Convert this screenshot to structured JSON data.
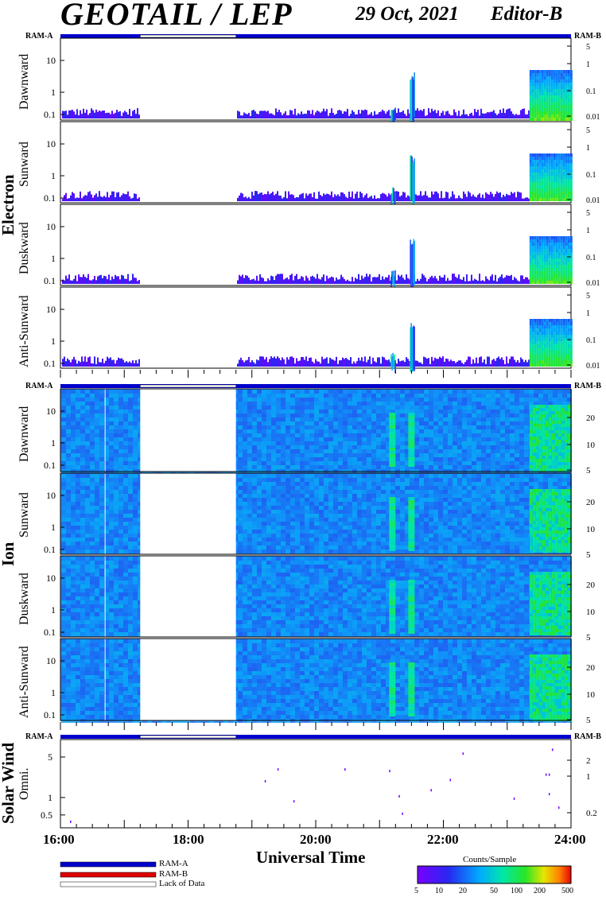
{
  "header": {
    "title": "GEOTAIL / LEP",
    "date": "29 Oct, 2021",
    "editor": "Editor-B"
  },
  "ram_labels": {
    "left": "RAM-A",
    "right": "RAM-B"
  },
  "groups": {
    "electron": "Electron",
    "ion": "Ion",
    "solar_wind": "Solar Wind"
  },
  "panel_labels": {
    "dawnward": "Dawnward",
    "sunward": "Sunward",
    "duskward": "Duskward",
    "anti_sunward": "Anti-Sunward",
    "omni": "Omni."
  },
  "x_axis": {
    "label": "Universal Time",
    "ticks": [
      "16:00",
      "18:00",
      "20:00",
      "22:00",
      "24:00"
    ]
  },
  "legend": {
    "ram_a": "RAM-A",
    "ram_b": "RAM-B",
    "lack": "Lack of Data",
    "colorbar_title": "Counts/Sample",
    "colorbar_ticks": [
      "5",
      "10",
      "20",
      "50",
      "100",
      "200",
      "500"
    ]
  },
  "colors": {
    "ram_a": "#0000cc",
    "ram_b": "#dd0000",
    "lack": "#ffffff",
    "background_ion": "#3a7fe0"
  },
  "chart_data": {
    "type": "heatmap",
    "x_range_hours": [
      16,
      24
    ],
    "data_gap_hours": [
      17.25,
      18.75
    ],
    "electron_panels": {
      "left_ticks": [
        "10",
        "1",
        "0.1"
      ],
      "right_ticks": [
        "5",
        "1",
        "0.1",
        "0.01"
      ],
      "bursts_hours": [
        21.2,
        21.5
      ],
      "high_flux_start_hour": 23.35
    },
    "ion_panels": {
      "left_ticks": [
        "10",
        "1",
        "0.1"
      ],
      "right_ticks": [
        "20",
        "10",
        "5"
      ],
      "bursts_hours": [
        21.2,
        21.5
      ],
      "high_flux_start_hour": 23.35
    },
    "solar_wind": {
      "left_ticks": [
        "5",
        "1",
        "0.5"
      ],
      "right_ticks": [
        "2",
        "1",
        "0.2"
      ],
      "points": [
        {
          "x": 16.15,
          "y": 0.4
        },
        {
          "x": 19.2,
          "y": 2.0
        },
        {
          "x": 19.4,
          "y": 3.2
        },
        {
          "x": 19.65,
          "y": 0.9
        },
        {
          "x": 20.45,
          "y": 3.2
        },
        {
          "x": 21.15,
          "y": 3.0
        },
        {
          "x": 21.3,
          "y": 1.1
        },
        {
          "x": 21.35,
          "y": 0.55
        },
        {
          "x": 21.8,
          "y": 1.4
        },
        {
          "x": 22.1,
          "y": 2.1
        },
        {
          "x": 22.3,
          "y": 6.0
        },
        {
          "x": 23.1,
          "y": 1.0
        },
        {
          "x": 23.6,
          "y": 2.6
        },
        {
          "x": 23.65,
          "y": 2.6
        },
        {
          "x": 23.65,
          "y": 1.2
        },
        {
          "x": 23.7,
          "y": 7.0
        },
        {
          "x": 23.8,
          "y": 0.7
        }
      ]
    }
  }
}
